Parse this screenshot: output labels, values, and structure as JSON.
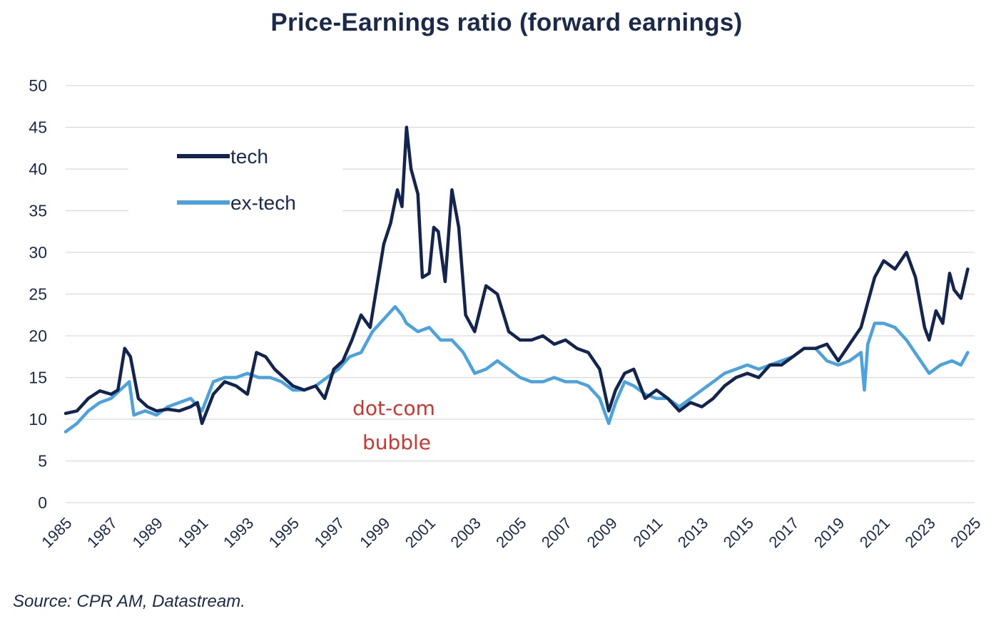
{
  "chart_data": {
    "type": "line",
    "title": "Price-Earnings ratio (forward earnings)",
    "xlabel": "",
    "ylabel": "",
    "xlim": [
      1985,
      2025
    ],
    "ylim": [
      0,
      50
    ],
    "grid": "horizontal",
    "legend_position": "top-left",
    "y_ticks": [
      "0",
      "5",
      "10",
      "15",
      "20",
      "25",
      "30",
      "35",
      "40",
      "45",
      "50"
    ],
    "x_ticks": [
      "1985",
      "1987",
      "1989",
      "1991",
      "1993",
      "1995",
      "1997",
      "1999",
      "2001",
      "2003",
      "2005",
      "2007",
      "2009",
      "2011",
      "2013",
      "2015",
      "2017",
      "2019",
      "2021",
      "2023",
      "2025"
    ],
    "series": [
      {
        "name": "tech",
        "color": "#13254f",
        "x": [
          1985.0,
          1985.5,
          1986.0,
          1986.5,
          1987.0,
          1987.3,
          1987.6,
          1987.85,
          1988.2,
          1988.6,
          1989.0,
          1989.5,
          1990.0,
          1990.5,
          1990.8,
          1991.0,
          1991.5,
          1992.0,
          1992.5,
          1993.0,
          1993.4,
          1993.8,
          1994.2,
          1994.6,
          1995.0,
          1995.5,
          1996.0,
          1996.4,
          1996.8,
          1997.2,
          1997.6,
          1998.0,
          1998.4,
          1998.7,
          1999.0,
          1999.3,
          1999.6,
          1999.8,
          2000.0,
          2000.2,
          2000.5,
          2000.7,
          2001.0,
          2001.2,
          2001.4,
          2001.7,
          2002.0,
          2002.3,
          2002.6,
          2003.0,
          2003.5,
          2004.0,
          2004.5,
          2005.0,
          2005.5,
          2006.0,
          2006.5,
          2007.0,
          2007.5,
          2008.0,
          2008.5,
          2008.9,
          2009.2,
          2009.6,
          2010.0,
          2010.5,
          2011.0,
          2011.5,
          2012.0,
          2012.5,
          2013.0,
          2013.5,
          2014.0,
          2014.5,
          2015.0,
          2015.5,
          2016.0,
          2016.5,
          2017.0,
          2017.5,
          2018.0,
          2018.5,
          2019.0,
          2019.5,
          2020.0,
          2020.3,
          2020.6,
          2021.0,
          2021.5,
          2022.0,
          2022.4,
          2022.8,
          2023.0,
          2023.3,
          2023.6,
          2023.9,
          2024.1,
          2024.4,
          2024.7
        ],
        "values": [
          10.7,
          11.0,
          12.5,
          13.4,
          13.0,
          13.5,
          18.5,
          17.5,
          12.5,
          11.5,
          11.0,
          11.2,
          11.0,
          11.5,
          12.0,
          9.5,
          13.0,
          14.5,
          14.0,
          13.0,
          18.0,
          17.5,
          16.0,
          15.0,
          14.0,
          13.5,
          14.0,
          12.5,
          16.0,
          17.0,
          19.5,
          22.5,
          21.0,
          26.0,
          31.0,
          33.5,
          37.5,
          35.5,
          45.0,
          40.0,
          37.0,
          27.0,
          27.5,
          33.0,
          32.5,
          26.5,
          37.5,
          33.0,
          22.5,
          20.5,
          26.0,
          25.0,
          20.5,
          19.5,
          19.5,
          20.0,
          19.0,
          19.5,
          18.5,
          18.0,
          16.0,
          11.0,
          13.5,
          15.5,
          16.0,
          12.5,
          13.5,
          12.5,
          11.0,
          12.0,
          11.5,
          12.5,
          14.0,
          15.0,
          15.5,
          15.0,
          16.5,
          16.5,
          17.5,
          18.5,
          18.5,
          19.0,
          17.0,
          19.0,
          21.0,
          24.0,
          27.0,
          29.0,
          28.0,
          30.0,
          27.0,
          21.0,
          19.5,
          23.0,
          21.5,
          27.5,
          25.5,
          24.5,
          28.0
        ]
      },
      {
        "name": "ex-tech",
        "color": "#4aa3df",
        "x": [
          1985.0,
          1985.5,
          1986.0,
          1986.5,
          1987.0,
          1987.4,
          1987.8,
          1988.0,
          1988.5,
          1989.0,
          1989.5,
          1990.0,
          1990.5,
          1991.0,
          1991.5,
          1992.0,
          1992.5,
          1993.0,
          1993.5,
          1994.0,
          1994.5,
          1995.0,
          1995.5,
          1996.0,
          1996.5,
          1997.0,
          1997.5,
          1998.0,
          1998.5,
          1999.0,
          1999.5,
          1999.8,
          2000.0,
          2000.5,
          2001.0,
          2001.5,
          2002.0,
          2002.5,
          2003.0,
          2003.5,
          2004.0,
          2004.5,
          2005.0,
          2005.5,
          2006.0,
          2006.5,
          2007.0,
          2007.5,
          2008.0,
          2008.5,
          2008.9,
          2009.2,
          2009.6,
          2010.0,
          2010.5,
          2011.0,
          2011.5,
          2012.0,
          2012.5,
          2013.0,
          2013.5,
          2014.0,
          2014.5,
          2015.0,
          2015.5,
          2016.0,
          2016.5,
          2017.0,
          2017.5,
          2018.0,
          2018.5,
          2019.0,
          2019.5,
          2020.0,
          2020.15,
          2020.3,
          2020.6,
          2021.0,
          2021.5,
          2022.0,
          2022.5,
          2023.0,
          2023.5,
          2024.0,
          2024.4,
          2024.7
        ],
        "values": [
          8.5,
          9.5,
          11.0,
          12.0,
          12.5,
          13.5,
          14.5,
          10.5,
          11.0,
          10.5,
          11.5,
          12.0,
          12.5,
          11.0,
          14.5,
          15.0,
          15.0,
          15.5,
          15.0,
          15.0,
          14.5,
          13.5,
          13.5,
          14.0,
          15.0,
          16.0,
          17.5,
          18.0,
          20.5,
          22.0,
          23.5,
          22.5,
          21.5,
          20.5,
          21.0,
          19.5,
          19.5,
          18.0,
          15.5,
          16.0,
          17.0,
          16.0,
          15.0,
          14.5,
          14.5,
          15.0,
          14.5,
          14.5,
          14.0,
          12.5,
          9.5,
          12.0,
          14.5,
          14.0,
          13.0,
          12.5,
          12.5,
          11.5,
          12.5,
          13.5,
          14.5,
          15.5,
          16.0,
          16.5,
          16.0,
          16.5,
          17.0,
          17.5,
          18.5,
          18.5,
          17.0,
          16.5,
          17.0,
          18.0,
          13.5,
          19.0,
          21.5,
          21.5,
          21.0,
          19.5,
          17.5,
          15.5,
          16.5,
          17.0,
          16.5,
          18.0
        ]
      }
    ],
    "annotations": [
      {
        "text_line1": "dot-com",
        "text_line2": "bubble",
        "color": "#d0342c"
      }
    ]
  },
  "source_text": "Source: CPR AM, Datastream."
}
